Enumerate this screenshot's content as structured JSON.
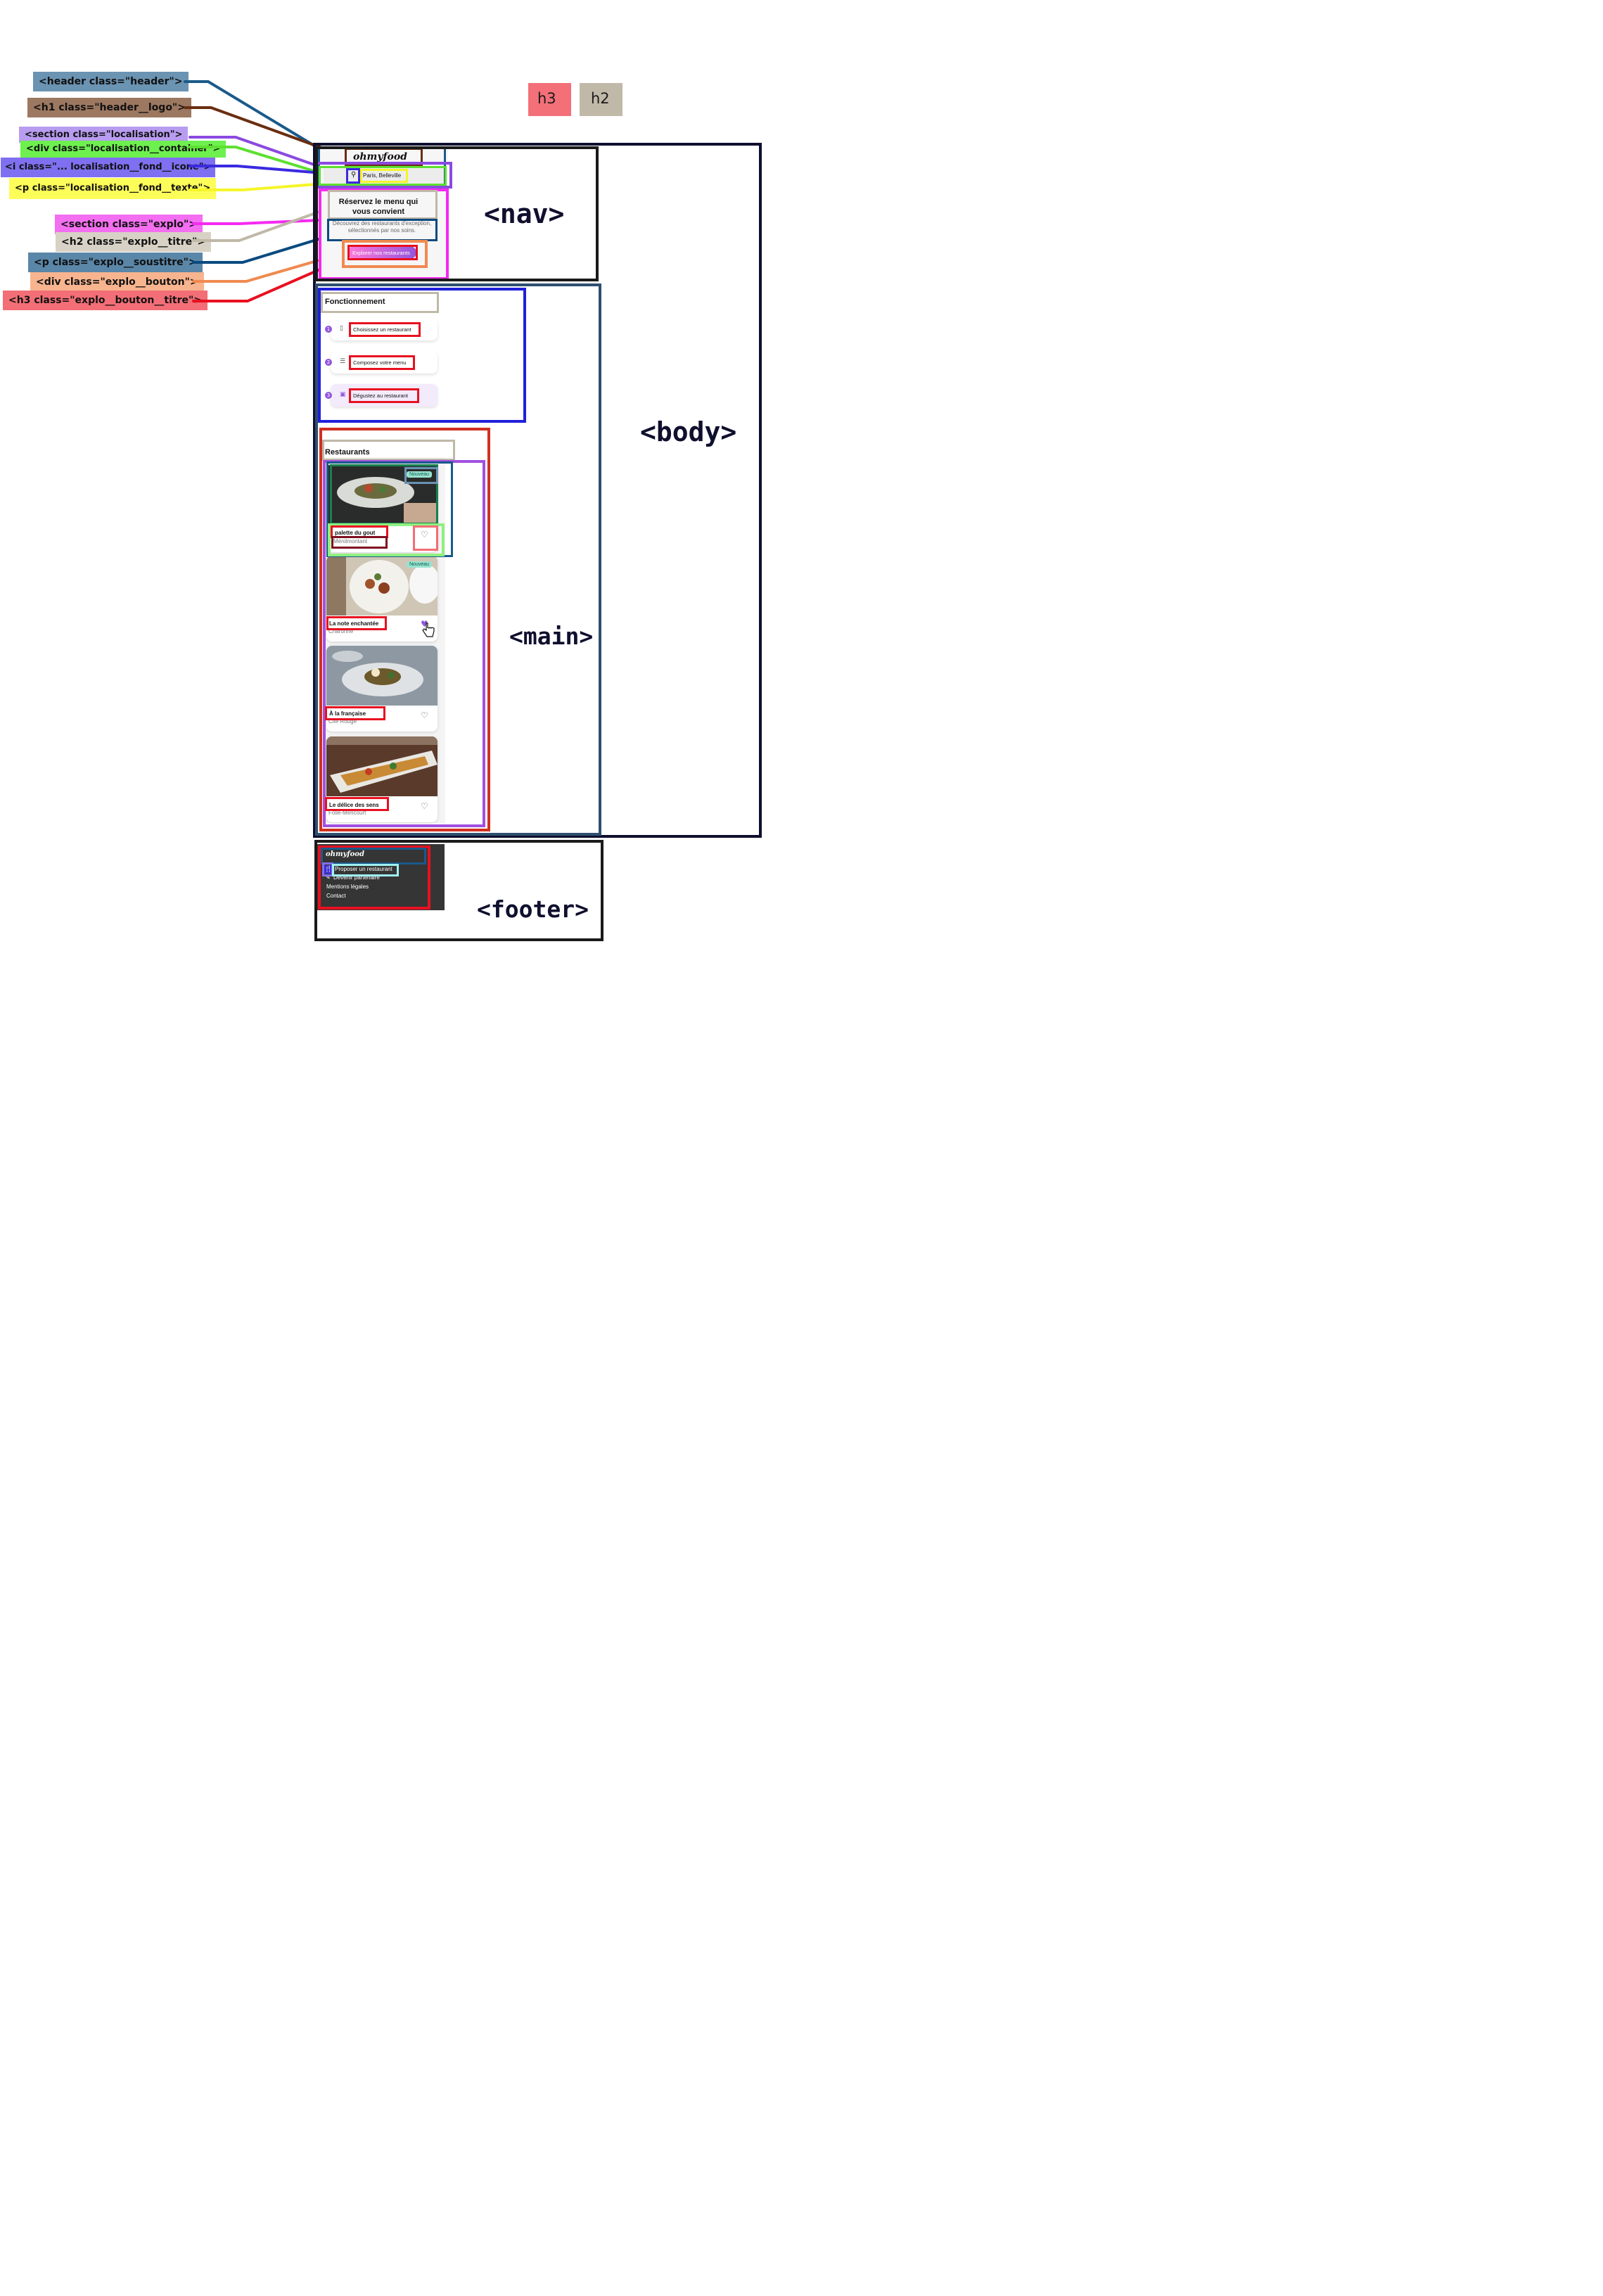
{
  "legend": {
    "h3": "h3",
    "h2": "h2"
  },
  "tags": {
    "header": "<header class=\"header\">",
    "logo": "<h1 class=\"header__logo\">",
    "localisation": "<section class=\"localisation\">",
    "loc_container": "<div class=\"localisation__container\">",
    "loc_icon": "<i class=\"... localisation__fond__icone\">",
    "loc_text": "<p class=\"localisation__fond__texte\">",
    "explo": "<section class=\"explo\">",
    "explo_titre": "<h2 class=\"explo__titre\">",
    "explo_soustitre": "<p class=\"explo__soustitre\">",
    "explo_bouton": "<div class=\"explo__bouton\">",
    "explo_bouton_titre": "<h3 class=\"explo__bouton__titre\">"
  },
  "regions": {
    "nav": "<nav>",
    "body": "<body>",
    "main": "<main>",
    "footer": "<footer>"
  },
  "page": {
    "logo": "ohmyfood",
    "location": "Paris, Belleville",
    "hero_title": "Réservez le menu qui vous convient",
    "hero_subtitle": "Découvrez des restaurants d'exception, sélectionnés par nos soins.",
    "hero_button": "Explorer nos restaurants",
    "how_title": "Fonctionnement",
    "steps": [
      {
        "num": "1",
        "label": "Choisissez un restaurant",
        "icon": "phone-icon"
      },
      {
        "num": "2",
        "label": "Composez votre menu",
        "icon": "list-icon"
      },
      {
        "num": "3",
        "label": "Dégustez au restaurant",
        "icon": "store-icon"
      }
    ],
    "restaurants_title": "Restaurants",
    "restaurants": [
      {
        "name": "palette du gout",
        "area": "Ménilmontant",
        "badge": "Nouveau"
      },
      {
        "name": "La note enchantée",
        "area": "Charonne",
        "badge": "Nouveau"
      },
      {
        "name": "À la française",
        "area": "Cité Rouge",
        "badge": ""
      },
      {
        "name": "Le délice des sens",
        "area": "Folie-Méricourt",
        "badge": ""
      }
    ],
    "footer_logo": "ohmyfood",
    "footer_links": [
      "Proposer un restaurant",
      "Devenir partenaire",
      "Mentions légales",
      "Contact"
    ]
  },
  "colors": {
    "accent_purple": "#9356dc",
    "body_frame": "#0f0f2e",
    "main_frame": "#2f4f6f",
    "footer_bg": "#353535"
  }
}
